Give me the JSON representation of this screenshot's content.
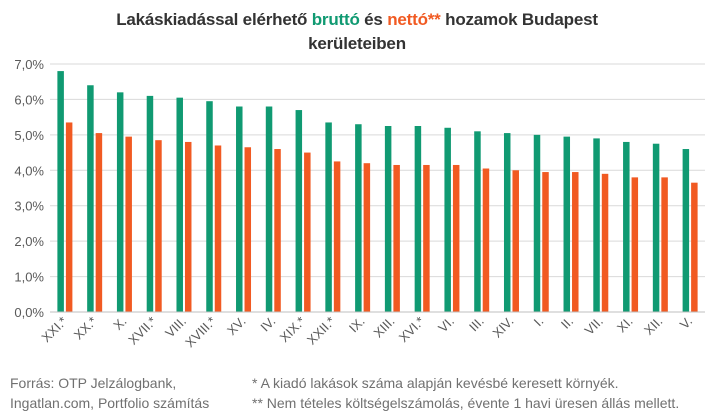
{
  "chart_data": {
    "type": "bar",
    "title": {
      "p1": "Lakáskiadással elérhető ",
      "p2": "bruttó",
      "p3": " és ",
      "p4": "nettó",
      "p5": "**",
      "p6": " hozamok Budapest",
      "line2": "kerületeiben"
    },
    "categories": [
      "XXI.*",
      "XX.*",
      "X.",
      "XVII.*",
      "VIII.",
      "XVIII.*",
      "XV.",
      "IV.",
      "XIX.*",
      "XXII.*",
      "IX.",
      "XIII.",
      "XVI.*",
      "VI.",
      "III.",
      "XIV.",
      "I.",
      "II.",
      "VII.",
      "XI.",
      "XII.",
      "V."
    ],
    "series": [
      {
        "name": "bruttó",
        "color": "#109a72",
        "values": [
          6.8,
          6.4,
          6.2,
          6.1,
          6.05,
          5.95,
          5.8,
          5.8,
          5.7,
          5.35,
          5.3,
          5.25,
          5.25,
          5.2,
          5.1,
          5.05,
          5.0,
          4.95,
          4.9,
          4.8,
          4.75,
          4.6
        ]
      },
      {
        "name": "nettó",
        "color": "#f15a22",
        "values": [
          5.35,
          5.05,
          4.95,
          4.85,
          4.8,
          4.7,
          4.65,
          4.6,
          4.5,
          4.25,
          4.2,
          4.15,
          4.15,
          4.15,
          4.05,
          4.0,
          3.95,
          3.95,
          3.9,
          3.8,
          3.8,
          3.65
        ]
      }
    ],
    "yticks": [
      "0,0%",
      "1,0%",
      "2,0%",
      "3,0%",
      "4,0%",
      "5,0%",
      "6,0%",
      "7,0%"
    ],
    "ylim": [
      0,
      7
    ],
    "grid": true
  },
  "footer": {
    "source_line1": "Forrás: OTP Jelzálogbank,",
    "source_line2": "Ingatlan.com, Portfolio számítás",
    "note1": "* A kiadó lakások száma alapján kevésbé keresett környék.",
    "note2": "** Nem tételes költségelszámolás, évente 1 havi üresen állás mellett."
  }
}
